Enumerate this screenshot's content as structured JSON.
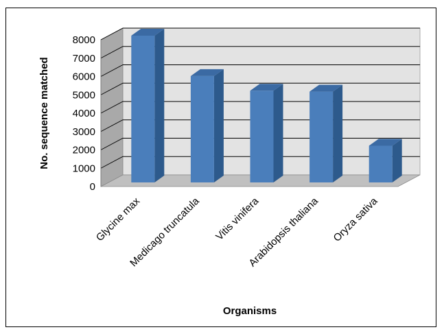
{
  "chart_data": {
    "type": "bar",
    "title": "",
    "xlabel": "Organisms",
    "ylabel": "No. sequence matched",
    "categories": [
      "Glycine max",
      "Medicago truncatula",
      "Vitis vinifera",
      "Arabidopsis thaliana",
      "Oryza sativa"
    ],
    "values": [
      8000,
      5800,
      5000,
      4950,
      2000
    ],
    "ylim": [
      0,
      8000
    ],
    "yticks": [
      "0",
      "1000",
      "2000",
      "3000",
      "4000",
      "5000",
      "6000",
      "7000",
      "8000"
    ],
    "grid": true,
    "legend": "none",
    "style": "3d-column",
    "colors": {
      "bar_front": "#4a7ebb",
      "bar_side": "#2d5a8c",
      "bar_top": "#3b6aa3",
      "wall": "#e3e3e3",
      "side_wall": "#a9a9a9",
      "floor": "#c0c0c0",
      "gridline": "#000000"
    }
  }
}
